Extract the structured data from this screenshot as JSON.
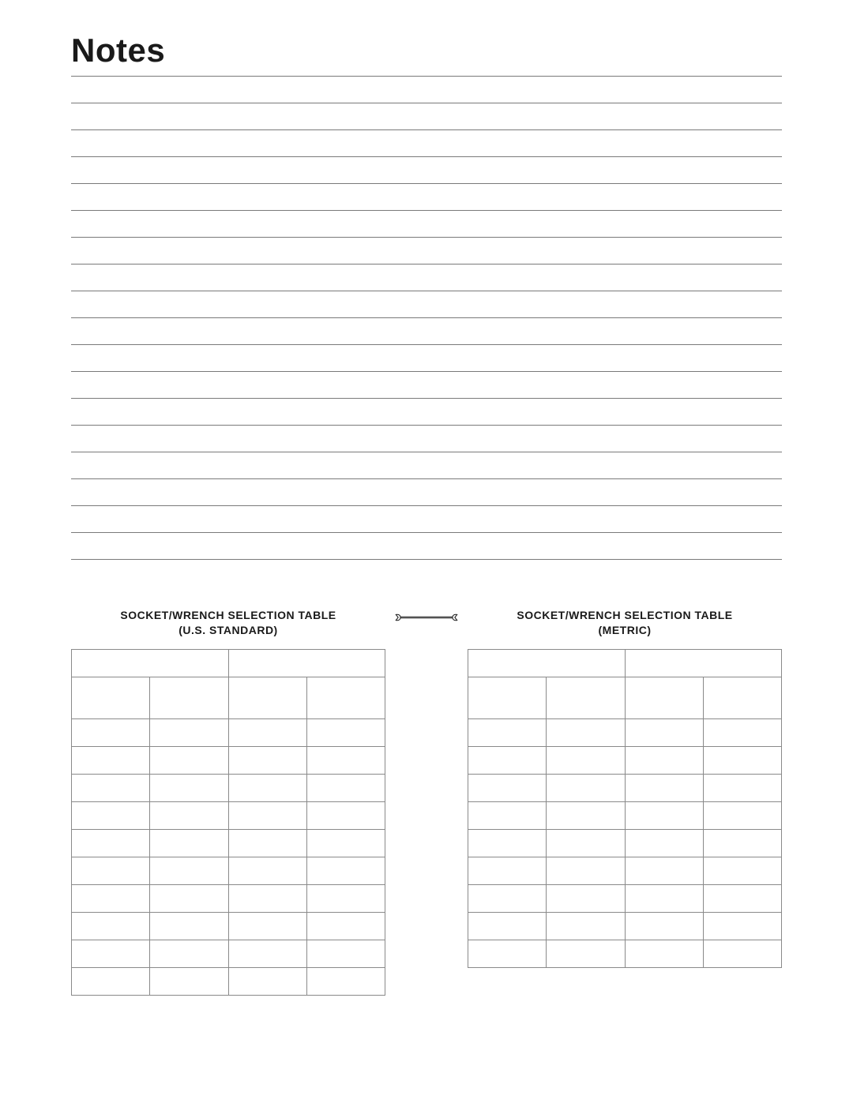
{
  "title": "Notes",
  "ruled_line_count": 19,
  "ruled_line_color": "#7a7a7a",
  "left_table": {
    "title_line1": "SOCKET/WRENCH SELECTION TABLE",
    "title_line2": "(U.S. STANDARD)",
    "group_header_a": "       ",
    "group_header_b": "           ",
    "sub_header_a1": "   ",
    "sub_header_a2": "    ",
    "sub_header_b1": "  ",
    "sub_header_b2": "  ",
    "rows": [
      [
        "   ",
        "    ",
        "   ",
        "    "
      ],
      [
        "    ",
        "    ",
        "   ",
        "    "
      ],
      [
        "   ",
        "    ",
        "    ",
        "   "
      ],
      [
        "   ",
        "    ",
        "   ",
        "   "
      ],
      [
        "   ",
        "    ",
        "   ",
        "    "
      ],
      [
        "    ",
        "    ",
        "   ",
        "   "
      ],
      [
        "   ",
        "    ",
        "    ",
        "  "
      ],
      [
        "   ",
        "    ",
        "    ",
        "    "
      ],
      [
        "   ",
        "    ",
        "     ",
        "     "
      ],
      [
        "  ",
        "    ",
        "    ",
        "    "
      ]
    ]
  },
  "right_table": {
    "title_line1": "SOCKET/WRENCH SELECTION TABLE",
    "title_line2": "(METRIC)",
    "group_header_a": "       ",
    "group_header_b": "           ",
    "sub_header_a1": "   ",
    "sub_header_a2": "   ",
    "sub_header_b1": "  ",
    "sub_header_b2": "  ",
    "rows": [
      [
        "  ",
        "    ",
        "   ",
        "   "
      ],
      [
        "  ",
        "    ",
        "   ",
        "   "
      ],
      [
        "   ",
        "    ",
        "   ",
        "   "
      ],
      [
        "   ",
        "    ",
        "   ",
        "   "
      ],
      [
        "   ",
        "    ",
        "   ",
        "   "
      ],
      [
        "   ",
        "    ",
        "   ",
        "   "
      ],
      [
        "   ",
        "    ",
        "   ",
        "   "
      ],
      [
        "   ",
        "    ",
        "   ",
        "   "
      ],
      [
        "   ",
        "    ",
        "   ",
        "   "
      ]
    ]
  },
  "page_number": "         "
}
